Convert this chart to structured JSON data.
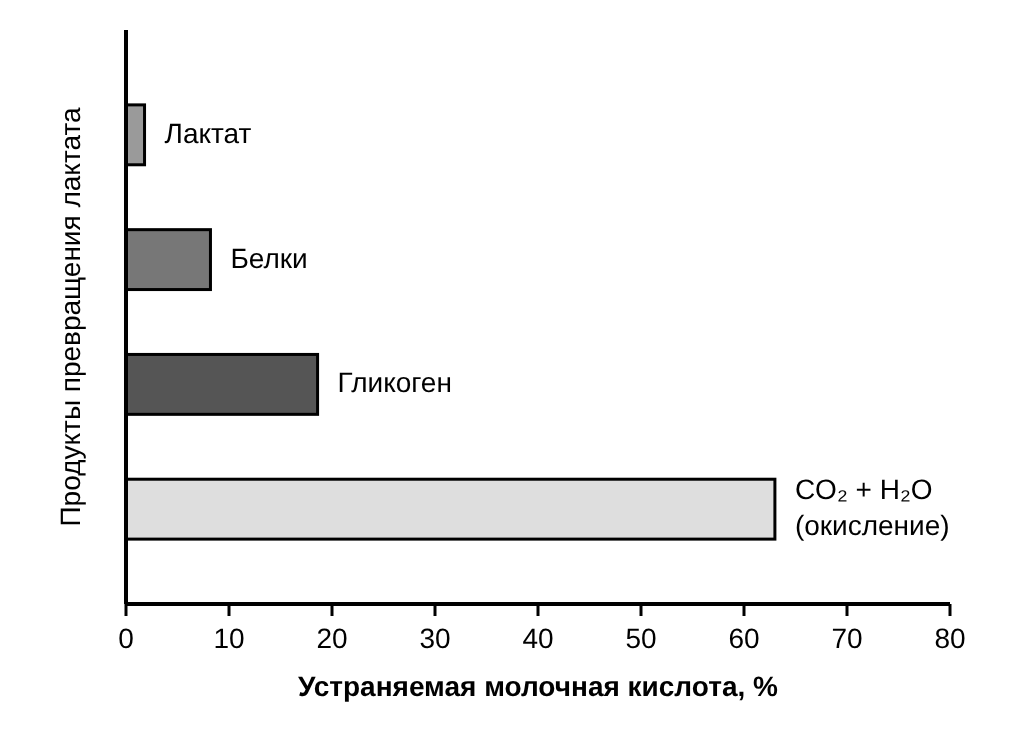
{
  "chart_data": {
    "type": "bar",
    "orientation": "horizontal",
    "xlabel": "Устраняемая молочная кислота, %",
    "ylabel": "Продукты превращения лактата",
    "categories": [
      "Лактат",
      "Белки",
      "Гликоген",
      "CO₂ + H₂O (окисление)"
    ],
    "values": [
      1.8,
      8.2,
      18.6,
      63
    ],
    "colors": [
      "#9a9a9a",
      "#777777",
      "#555555",
      "#dedede"
    ],
    "xlim": [
      0,
      80
    ],
    "xticks": [
      0,
      10,
      20,
      30,
      40,
      50,
      60,
      70,
      80
    ],
    "grid": false
  }
}
